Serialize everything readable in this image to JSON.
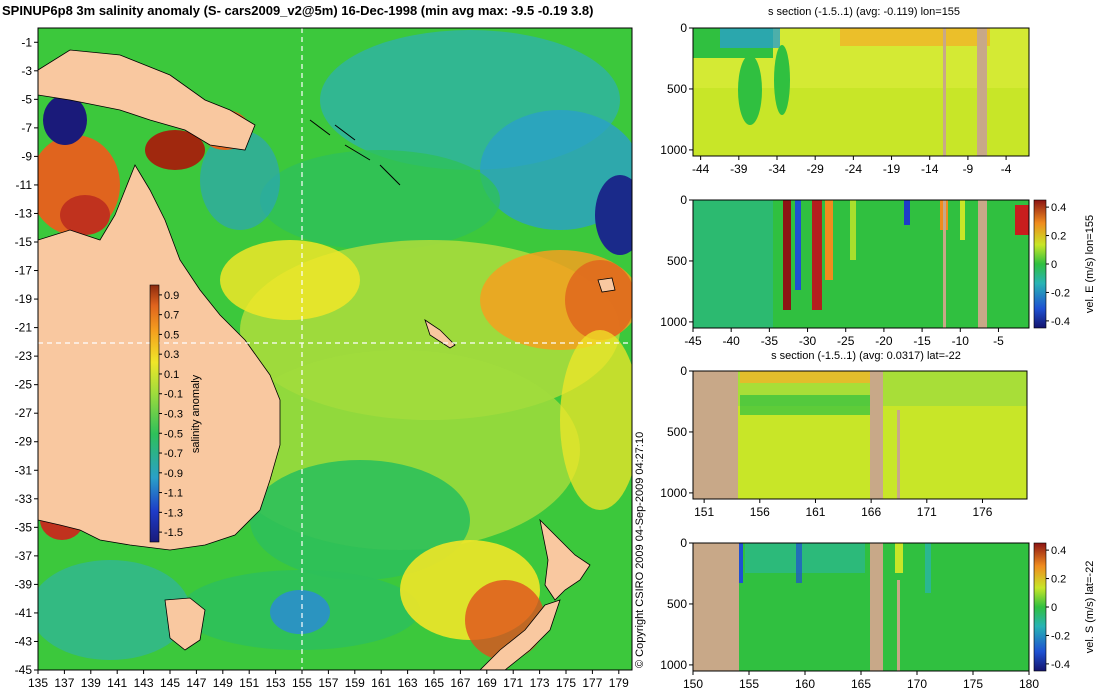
{
  "title": "SPINUP6p8 3m salinity anomaly (S- cars2009_v2@5m) 16-Dec-1998 (min avg max: -9.5 -0.19 3.8)",
  "copyright": "© Copyright CSIRO 2009   04-Sep-2009 04:27:10",
  "colors": {
    "land": "#f9c8a0",
    "section_land": "#c8a888",
    "background_ocean": "#3cc83c"
  },
  "chart_data": [
    {
      "type": "heatmap",
      "name": "map",
      "title": "SPINUP6p8 3m salinity anomaly (S- cars2009_v2@5m) 16-Dec-1998 (min avg max: -9.5 -0.19 3.8)",
      "x_ticks": [
        135,
        137,
        139,
        141,
        143,
        145,
        147,
        149,
        151,
        153,
        155,
        157,
        159,
        161,
        163,
        165,
        167,
        169,
        171,
        173,
        175,
        177,
        179
      ],
      "y_ticks": [
        -1,
        -3,
        -5,
        -7,
        -9,
        -11,
        -13,
        -15,
        -17,
        -19,
        -21,
        -23,
        -25,
        -27,
        -29,
        -31,
        -33,
        -35,
        -37,
        -39,
        -41,
        -43,
        -45
      ],
      "xlim": [
        135,
        180
      ],
      "ylim": [
        -45,
        0
      ],
      "crosshair": {
        "lon": 155,
        "lat": -22
      },
      "colorbar": {
        "label": "salinity anomaly",
        "ticks": [
          "0.9",
          "0.7",
          "0.5",
          "0.3",
          "0.1",
          "-0.1",
          "-0.3",
          "-0.5",
          "-0.7",
          "-0.9",
          "-1.1",
          "-1.3",
          "-1.5"
        ],
        "range": [
          -1.6,
          1.0
        ]
      }
    },
    {
      "type": "heatmap",
      "name": "s-section-lon",
      "title": "s section (-1.5..1) (avg: -0.119) lon=155",
      "x_ticks": [
        "-44",
        "-39",
        "-34",
        "-29",
        "-24",
        "-19",
        "-14",
        "-9",
        "-4"
      ],
      "y_ticks": [
        "0",
        "500",
        "1000"
      ],
      "xlim": [
        -45,
        -1
      ],
      "ylim": [
        1050,
        0
      ]
    },
    {
      "type": "heatmap",
      "name": "vel-e-section",
      "ylabel": "vel. E (m/s) lon=155",
      "x_ticks": [
        "-45",
        "-40",
        "-35",
        "-30",
        "-25",
        "-20",
        "-15",
        "-10",
        "-5"
      ],
      "y_ticks": [
        "0",
        "500",
        "1000"
      ],
      "xlim": [
        -45,
        -1
      ],
      "ylim": [
        1050,
        0
      ],
      "colorbar": {
        "ticks": [
          "0.4",
          "0.2",
          "0",
          "-0.2",
          "-0.4"
        ],
        "range": [
          -0.45,
          0.45
        ]
      }
    },
    {
      "type": "heatmap",
      "name": "s-section-lat",
      "title": "s section (-1.5..1) (avg: 0.0317) lat=-22",
      "x_ticks": [
        "151",
        "156",
        "161",
        "166",
        "171",
        "176"
      ],
      "y_ticks": [
        "0",
        "500",
        "1000"
      ],
      "xlim": [
        150,
        180
      ],
      "ylim": [
        1050,
        0
      ]
    },
    {
      "type": "heatmap",
      "name": "vel-s-section",
      "ylabel": "vel. S (m/s) lat=-22",
      "x_ticks": [
        "150",
        "155",
        "160",
        "165",
        "170",
        "175",
        "180"
      ],
      "y_ticks": [
        "0",
        "500",
        "1000"
      ],
      "xlim": [
        150,
        180
      ],
      "ylim": [
        1050,
        0
      ],
      "colorbar": {
        "ticks": [
          "0.4",
          "0.2",
          "0",
          "-0.2",
          "-0.4"
        ],
        "range": [
          -0.45,
          0.45
        ]
      }
    }
  ]
}
